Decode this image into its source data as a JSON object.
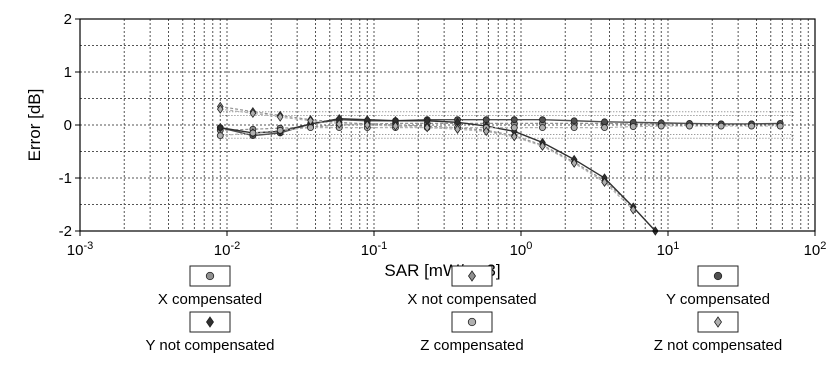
{
  "chart_data": {
    "type": "line",
    "xlabel": "SAR [mW/cm3]",
    "ylabel": "Error [dB]",
    "x_scale": "log",
    "xlim": [
      0.001,
      100
    ],
    "ylim": [
      -2,
      2
    ],
    "grid": true,
    "x_ticks": [
      {
        "base": "10",
        "exp": "-3"
      },
      {
        "base": "10",
        "exp": "-2"
      },
      {
        "base": "10",
        "exp": "-1"
      },
      {
        "base": "10",
        "exp": "0"
      },
      {
        "base": "10",
        "exp": "1"
      },
      {
        "base": "10",
        "exp": "2"
      }
    ],
    "y_ticks": [
      "2",
      "1",
      "0",
      "-1",
      "-2"
    ],
    "legend_position": "bottom",
    "series": [
      {
        "name": "X compensated",
        "marker": "dot-gray",
        "color": "#909090",
        "x": [
          0.009,
          0.015,
          0.023,
          0.037,
          0.058,
          0.09,
          0.14,
          0.23,
          0.37,
          0.58,
          0.9,
          1.4,
          2.3,
          3.7,
          5.8,
          9,
          14,
          23,
          37,
          58
        ],
        "y": [
          -0.1,
          -0.08,
          -0.06,
          -0.04,
          0.0,
          0.02,
          0.03,
          0.03,
          0.03,
          0.03,
          0.03,
          0.03,
          0.03,
          0.03,
          0.02,
          0.02,
          0.02,
          0.02,
          0.02,
          0.02
        ]
      },
      {
        "name": "X not compensated",
        "marker": "diamond-gray",
        "color": "#909090",
        "x": [
          0.009,
          0.015,
          0.023,
          0.037,
          0.058,
          0.09,
          0.14,
          0.23,
          0.37,
          0.58,
          0.9,
          1.4,
          2.3,
          3.7,
          5.8
        ],
        "y": [
          0.35,
          0.25,
          0.18,
          0.1,
          0.05,
          0.02,
          0.0,
          -0.02,
          -0.05,
          -0.1,
          -0.2,
          -0.38,
          -0.7,
          -1.05,
          -1.55
        ]
      },
      {
        "name": "Y compensated",
        "marker": "dot-dark",
        "color": "#505050",
        "x": [
          0.009,
          0.015,
          0.023,
          0.037,
          0.058,
          0.09,
          0.14,
          0.23,
          0.37,
          0.58,
          0.9,
          1.4,
          2.3,
          3.7,
          5.8,
          9,
          14,
          23,
          37,
          58
        ],
        "y": [
          -0.05,
          -0.2,
          -0.15,
          0.02,
          0.1,
          0.08,
          0.08,
          0.1,
          0.1,
          0.1,
          0.1,
          0.1,
          0.08,
          0.06,
          0.05,
          0.04,
          0.03,
          0.02,
          0.02,
          0.03
        ]
      },
      {
        "name": "Y not compensated",
        "marker": "diamond-dark",
        "color": "#303030",
        "x": [
          0.009,
          0.015,
          0.023,
          0.037,
          0.058,
          0.09,
          0.14,
          0.23,
          0.37,
          0.58,
          0.9,
          1.4,
          2.3,
          3.7,
          5.8,
          8.2
        ],
        "y": [
          -0.05,
          -0.15,
          -0.12,
          0.02,
          0.12,
          0.1,
          0.08,
          0.08,
          0.05,
          -0.02,
          -0.12,
          -0.33,
          -0.65,
          -1.0,
          -1.55,
          -2.0
        ]
      },
      {
        "name": "Z compensated",
        "marker": "dot-gray",
        "color": "#b0b0b0",
        "x": [
          0.009,
          0.015,
          0.023,
          0.037,
          0.058,
          0.09,
          0.14,
          0.23,
          0.37,
          0.58,
          0.9,
          1.4,
          2.3,
          3.7,
          5.8,
          9,
          14,
          23,
          37,
          58
        ],
        "y": [
          -0.2,
          -0.15,
          -0.1,
          -0.05,
          -0.05,
          -0.05,
          -0.05,
          -0.05,
          -0.05,
          -0.05,
          -0.05,
          -0.05,
          -0.05,
          -0.05,
          -0.03,
          -0.02,
          -0.02,
          -0.02,
          -0.02,
          -0.02
        ]
      },
      {
        "name": "Z not compensated",
        "marker": "diamond-gray",
        "color": "#b0b0b0",
        "x": [
          0.009,
          0.015,
          0.023,
          0.037,
          0.058,
          0.09,
          0.14,
          0.23,
          0.37,
          0.58,
          0.9,
          1.4,
          2.3,
          3.7,
          5.8
        ],
        "y": [
          0.3,
          0.22,
          0.15,
          0.08,
          0.02,
          0.0,
          -0.02,
          -0.05,
          -0.08,
          -0.12,
          -0.22,
          -0.4,
          -0.72,
          -1.08,
          -1.6
        ]
      }
    ]
  }
}
